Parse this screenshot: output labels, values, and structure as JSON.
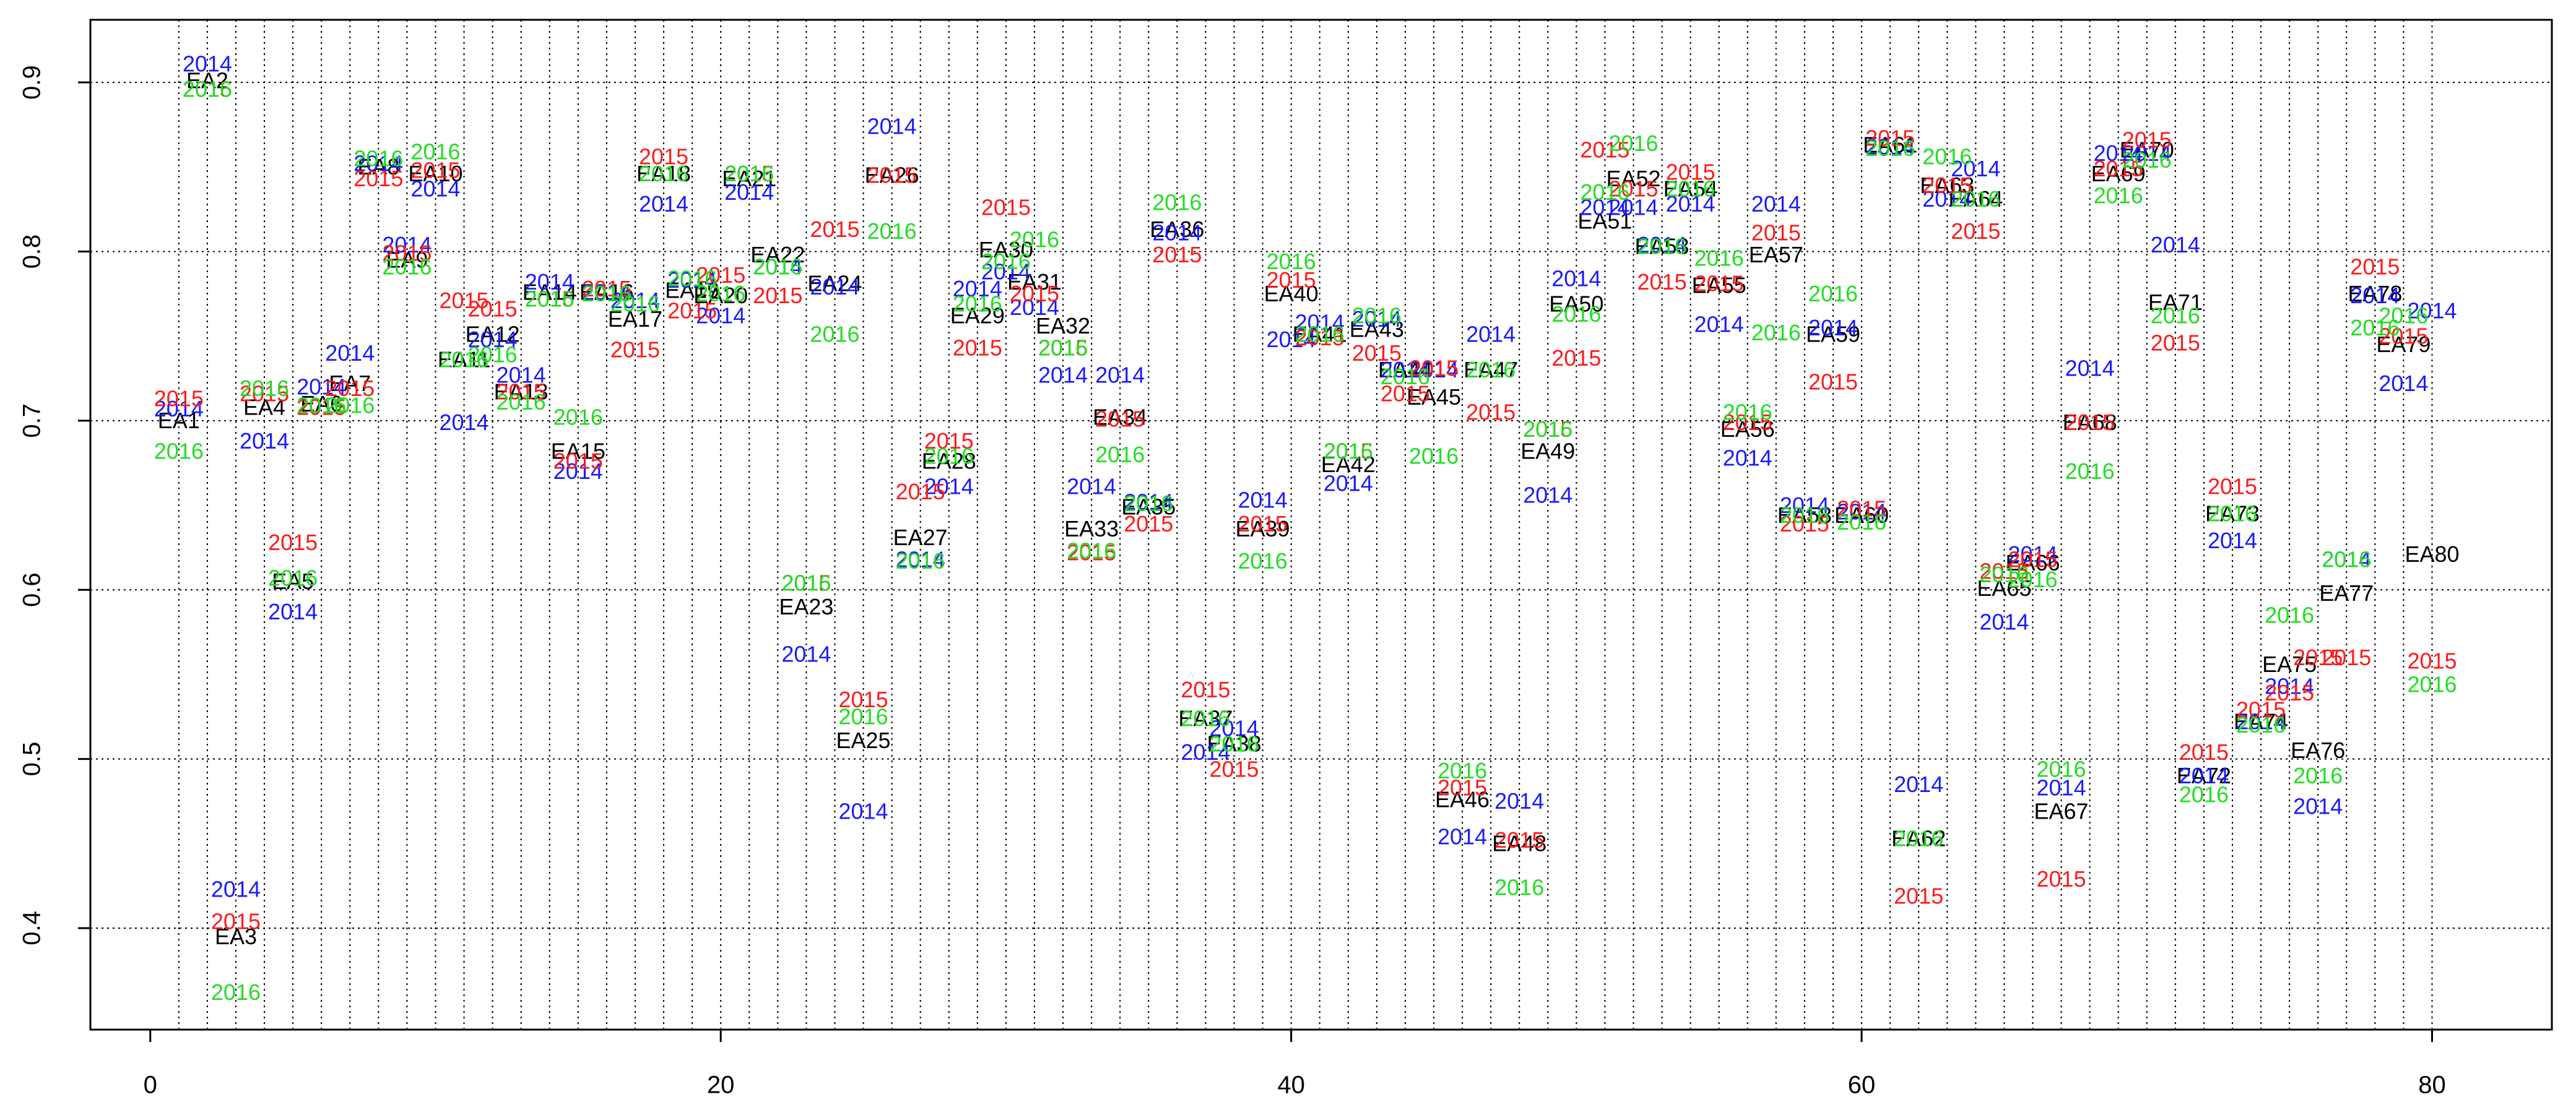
{
  "chart_data": {
    "type": "scatter",
    "x": [
      1,
      2,
      3,
      4,
      5,
      6,
      7,
      8,
      9,
      10,
      11,
      12,
      13,
      14,
      15,
      16,
      17,
      18,
      19,
      20,
      21,
      22,
      23,
      24,
      25,
      26,
      27,
      28,
      29,
      30,
      31,
      32,
      33,
      34,
      35,
      36,
      37,
      38,
      39,
      40,
      41,
      42,
      43,
      44,
      45,
      46,
      47,
      48,
      49,
      50,
      51,
      52,
      53,
      54,
      55,
      56,
      57,
      58,
      59,
      60,
      61,
      62,
      63,
      64,
      65,
      66,
      67,
      68,
      69,
      70,
      71,
      72,
      73,
      74,
      75,
      76,
      77,
      78,
      79,
      80
    ],
    "series": [
      {
        "labels": [
          "EA1",
          "EA2",
          "EA3",
          "EA4",
          "EA5",
          "EA6",
          "EA7",
          "EA8",
          "EA9",
          "EA10",
          "EA11",
          "EA12",
          "EA13",
          "EA14",
          "EA15",
          "EA16",
          "EA17",
          "EA18",
          "EA19",
          "EA20",
          "EA21",
          "EA22",
          "EA23",
          "EA24",
          "EA25",
          "EA26",
          "EA27",
          "EA28",
          "EA29",
          "EA30",
          "EA31",
          "EA32",
          "EA33",
          "EA34",
          "EA35",
          "EA36",
          "EA37",
          "EA38",
          "EA39",
          "EA40",
          "EA41",
          "EA42",
          "EA43",
          "EA44",
          "EA45",
          "EA46",
          "EA47",
          "EA48",
          "EA49",
          "EA50",
          "EA51",
          "EA52",
          "EA53",
          "EA54",
          "EA55",
          "EA56",
          "EA57",
          "EA58",
          "EA59",
          "EA60",
          "EA61",
          "EA62",
          "EA63",
          "EA64",
          "EA65",
          "EA66",
          "EA67",
          "EA68",
          "EA69",
          "EA70",
          "EA71",
          "EA72",
          "EA73",
          "EA74",
          "EA75",
          "EA76",
          "EA77",
          "EA78",
          "EA79",
          "EA80"
        ],
        "color": "#000000",
        "values": [
          0.699,
          0.9,
          0.394,
          0.707,
          0.604,
          0.709,
          0.721,
          0.849,
          0.794,
          0.845,
          0.735,
          0.75,
          0.716,
          0.775,
          0.681,
          0.775,
          0.759,
          0.845,
          0.776,
          0.773,
          0.842,
          0.797,
          0.589,
          0.78,
          0.51,
          0.844,
          0.63,
          0.675,
          0.761,
          0.8,
          0.781,
          0.755,
          0.635,
          0.701,
          0.648,
          0.812,
          0.523,
          0.508,
          0.635,
          0.774,
          0.75,
          0.673,
          0.753,
          0.729,
          0.713,
          0.475,
          0.729,
          0.449,
          0.681,
          0.768,
          0.817,
          0.842,
          0.802,
          0.836,
          0.779,
          0.694,
          0.797,
          0.643,
          0.75,
          0.643,
          0.862,
          0.452,
          0.838,
          0.83,
          0.6,
          0.615,
          0.468,
          0.698,
          0.845,
          0.859,
          0.769,
          0.489,
          0.644,
          0.521,
          0.555,
          0.504,
          0.597,
          0.774,
          0.744,
          0.62
        ]
      },
      {
        "name": "2014",
        "color": "#1a1aff",
        "values": [
          0.706,
          0.91,
          0.422,
          0.687,
          0.586,
          0.719,
          0.739,
          0.851,
          0.803,
          0.836,
          0.698,
          0.747,
          0.726,
          0.781,
          0.669,
          0.775,
          0.77,
          0.827,
          0.782,
          0.761,
          0.834,
          0.79,
          0.561,
          0.778,
          0.468,
          0.873,
          0.617,
          0.66,
          0.777,
          0.787,
          0.766,
          0.726,
          0.66,
          0.726,
          0.651,
          0.81,
          0.503,
          0.517,
          0.652,
          0.747,
          0.757,
          0.662,
          0.759,
          0.729,
          0.729,
          0.453,
          0.75,
          0.474,
          0.655,
          0.783,
          0.825,
          0.825,
          0.803,
          0.827,
          0.756,
          0.677,
          0.827,
          0.649,
          0.754,
          0.645,
          0.861,
          0.484,
          0.83,
          0.848,
          0.58,
          0.62,
          0.482,
          0.73,
          0.857,
          0.857,
          0.803,
          0.489,
          0.628,
          0.521,
          0.542,
          0.471,
          0.617,
          0.773,
          0.721,
          0.764
        ]
      },
      {
        "name": "2015",
        "color": "#ff1a1a",
        "values": [
          0.712,
          0.895,
          0.403,
          0.715,
          0.627,
          0.707,
          0.718,
          0.842,
          0.798,
          0.847,
          0.77,
          0.765,
          0.716,
          0.771,
          0.675,
          0.777,
          0.741,
          0.855,
          0.764,
          0.785,
          0.845,
          0.773,
          0.603,
          0.812,
          0.534,
          0.844,
          0.657,
          0.687,
          0.742,
          0.825,
          0.774,
          0.742,
          0.621,
          0.7,
          0.638,
          0.797,
          0.54,
          0.493,
          0.638,
          0.782,
          0.748,
          0.681,
          0.739,
          0.715,
          0.73,
          0.482,
          0.704,
          0.451,
          0.694,
          0.736,
          0.859,
          0.836,
          0.781,
          0.846,
          0.78,
          0.698,
          0.81,
          0.638,
          0.722,
          0.647,
          0.866,
          0.418,
          0.838,
          0.811,
          0.61,
          0.617,
          0.428,
          0.698,
          0.848,
          0.865,
          0.745,
          0.503,
          0.66,
          0.528,
          0.538,
          0.559,
          0.559,
          0.79,
          0.749,
          0.557
        ]
      },
      {
        "name": "2016",
        "color": "#22dd22",
        "values": [
          0.681,
          0.895,
          0.361,
          0.718,
          0.606,
          0.708,
          0.708,
          0.854,
          0.79,
          0.858,
          0.735,
          0.738,
          0.71,
          0.771,
          0.701,
          0.774,
          0.768,
          0.845,
          0.783,
          0.774,
          0.845,
          0.79,
          0.603,
          0.75,
          0.524,
          0.811,
          0.616,
          0.678,
          0.768,
          0.793,
          0.806,
          0.742,
          0.622,
          0.679,
          0.65,
          0.828,
          0.523,
          0.508,
          0.616,
          0.793,
          0.75,
          0.681,
          0.761,
          0.725,
          0.678,
          0.492,
          0.729,
          0.423,
          0.694,
          0.762,
          0.834,
          0.863,
          0.802,
          0.836,
          0.795,
          0.704,
          0.751,
          0.643,
          0.774,
          0.639,
          0.86,
          0.452,
          0.855,
          0.83,
          0.608,
          0.605,
          0.493,
          0.669,
          0.832,
          0.853,
          0.761,
          0.478,
          0.644,
          0.519,
          0.584,
          0.489,
          0.617,
          0.754,
          0.761,
          0.543
        ]
      }
    ],
    "xlim": [
      -2.1,
      84.2
    ],
    "ylim": [
      0.34,
      0.937
    ],
    "xticks": [
      0,
      20,
      40,
      60,
      80
    ],
    "yticks": [
      0.4,
      0.5,
      0.6,
      0.7,
      0.8,
      0.9
    ],
    "grid": true
  }
}
